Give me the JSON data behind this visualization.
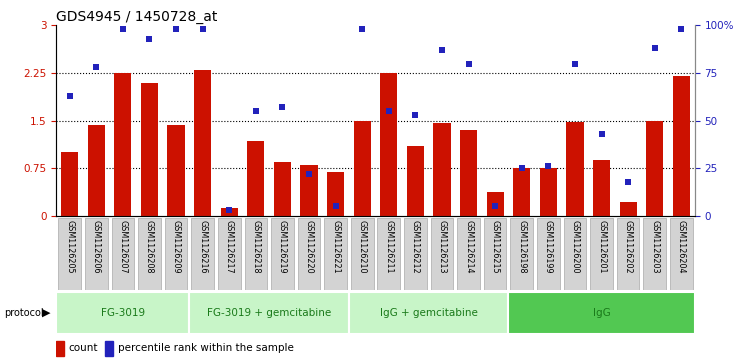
{
  "title": "GDS4945 / 1450728_at",
  "samples": [
    "GSM1126205",
    "GSM1126206",
    "GSM1126207",
    "GSM1126208",
    "GSM1126209",
    "GSM1126216",
    "GSM1126217",
    "GSM1126218",
    "GSM1126219",
    "GSM1126220",
    "GSM1126221",
    "GSM1126210",
    "GSM1126211",
    "GSM1126212",
    "GSM1126213",
    "GSM1126214",
    "GSM1126215",
    "GSM1126198",
    "GSM1126199",
    "GSM1126200",
    "GSM1126201",
    "GSM1126202",
    "GSM1126203",
    "GSM1126204"
  ],
  "counts": [
    1.0,
    1.43,
    2.25,
    2.1,
    1.43,
    2.3,
    0.12,
    1.18,
    0.85,
    0.8,
    0.7,
    1.5,
    2.25,
    1.1,
    1.47,
    1.35,
    0.38,
    0.75,
    0.75,
    1.48,
    0.88,
    0.22,
    1.5,
    2.2
  ],
  "percentile_ranks": [
    63,
    78,
    98,
    93,
    98,
    98,
    3,
    55,
    57,
    22,
    5,
    98,
    55,
    53,
    87,
    80,
    5,
    25,
    26,
    80,
    43,
    18,
    88,
    98
  ],
  "groups": [
    {
      "label": "FG-3019",
      "start": 0,
      "end": 5
    },
    {
      "label": "FG-3019 + gemcitabine",
      "start": 5,
      "end": 11
    },
    {
      "label": "IgG + gemcitabine",
      "start": 11,
      "end": 17
    },
    {
      "label": "IgG",
      "start": 17,
      "end": 24
    }
  ],
  "group_colors": [
    "#c8f5c8",
    "#c8f5c8",
    "#c8f5c8",
    "#52c852"
  ],
  "ylim_left": [
    0,
    3
  ],
  "ylim_right": [
    0,
    100
  ],
  "yticks_left": [
    0,
    0.75,
    1.5,
    2.25,
    3.0
  ],
  "ytick_labels_left": [
    "0",
    "0.75",
    "1.5",
    "2.25",
    "3"
  ],
  "yticks_right": [
    0,
    25,
    50,
    75,
    100
  ],
  "ytick_labels_right": [
    "0",
    "25",
    "50",
    "75",
    "100%"
  ],
  "bar_color": "#cc1100",
  "dot_color": "#2222bb",
  "bg_color": "#ffffff",
  "grid_color": "#000000",
  "tick_color_left": "#cc1100",
  "tick_color_right": "#2222bb",
  "title_fontsize": 10,
  "tick_fontsize": 7.5,
  "sample_fontsize": 5.8,
  "group_fontsize": 7.5,
  "legend_fontsize": 7.5
}
